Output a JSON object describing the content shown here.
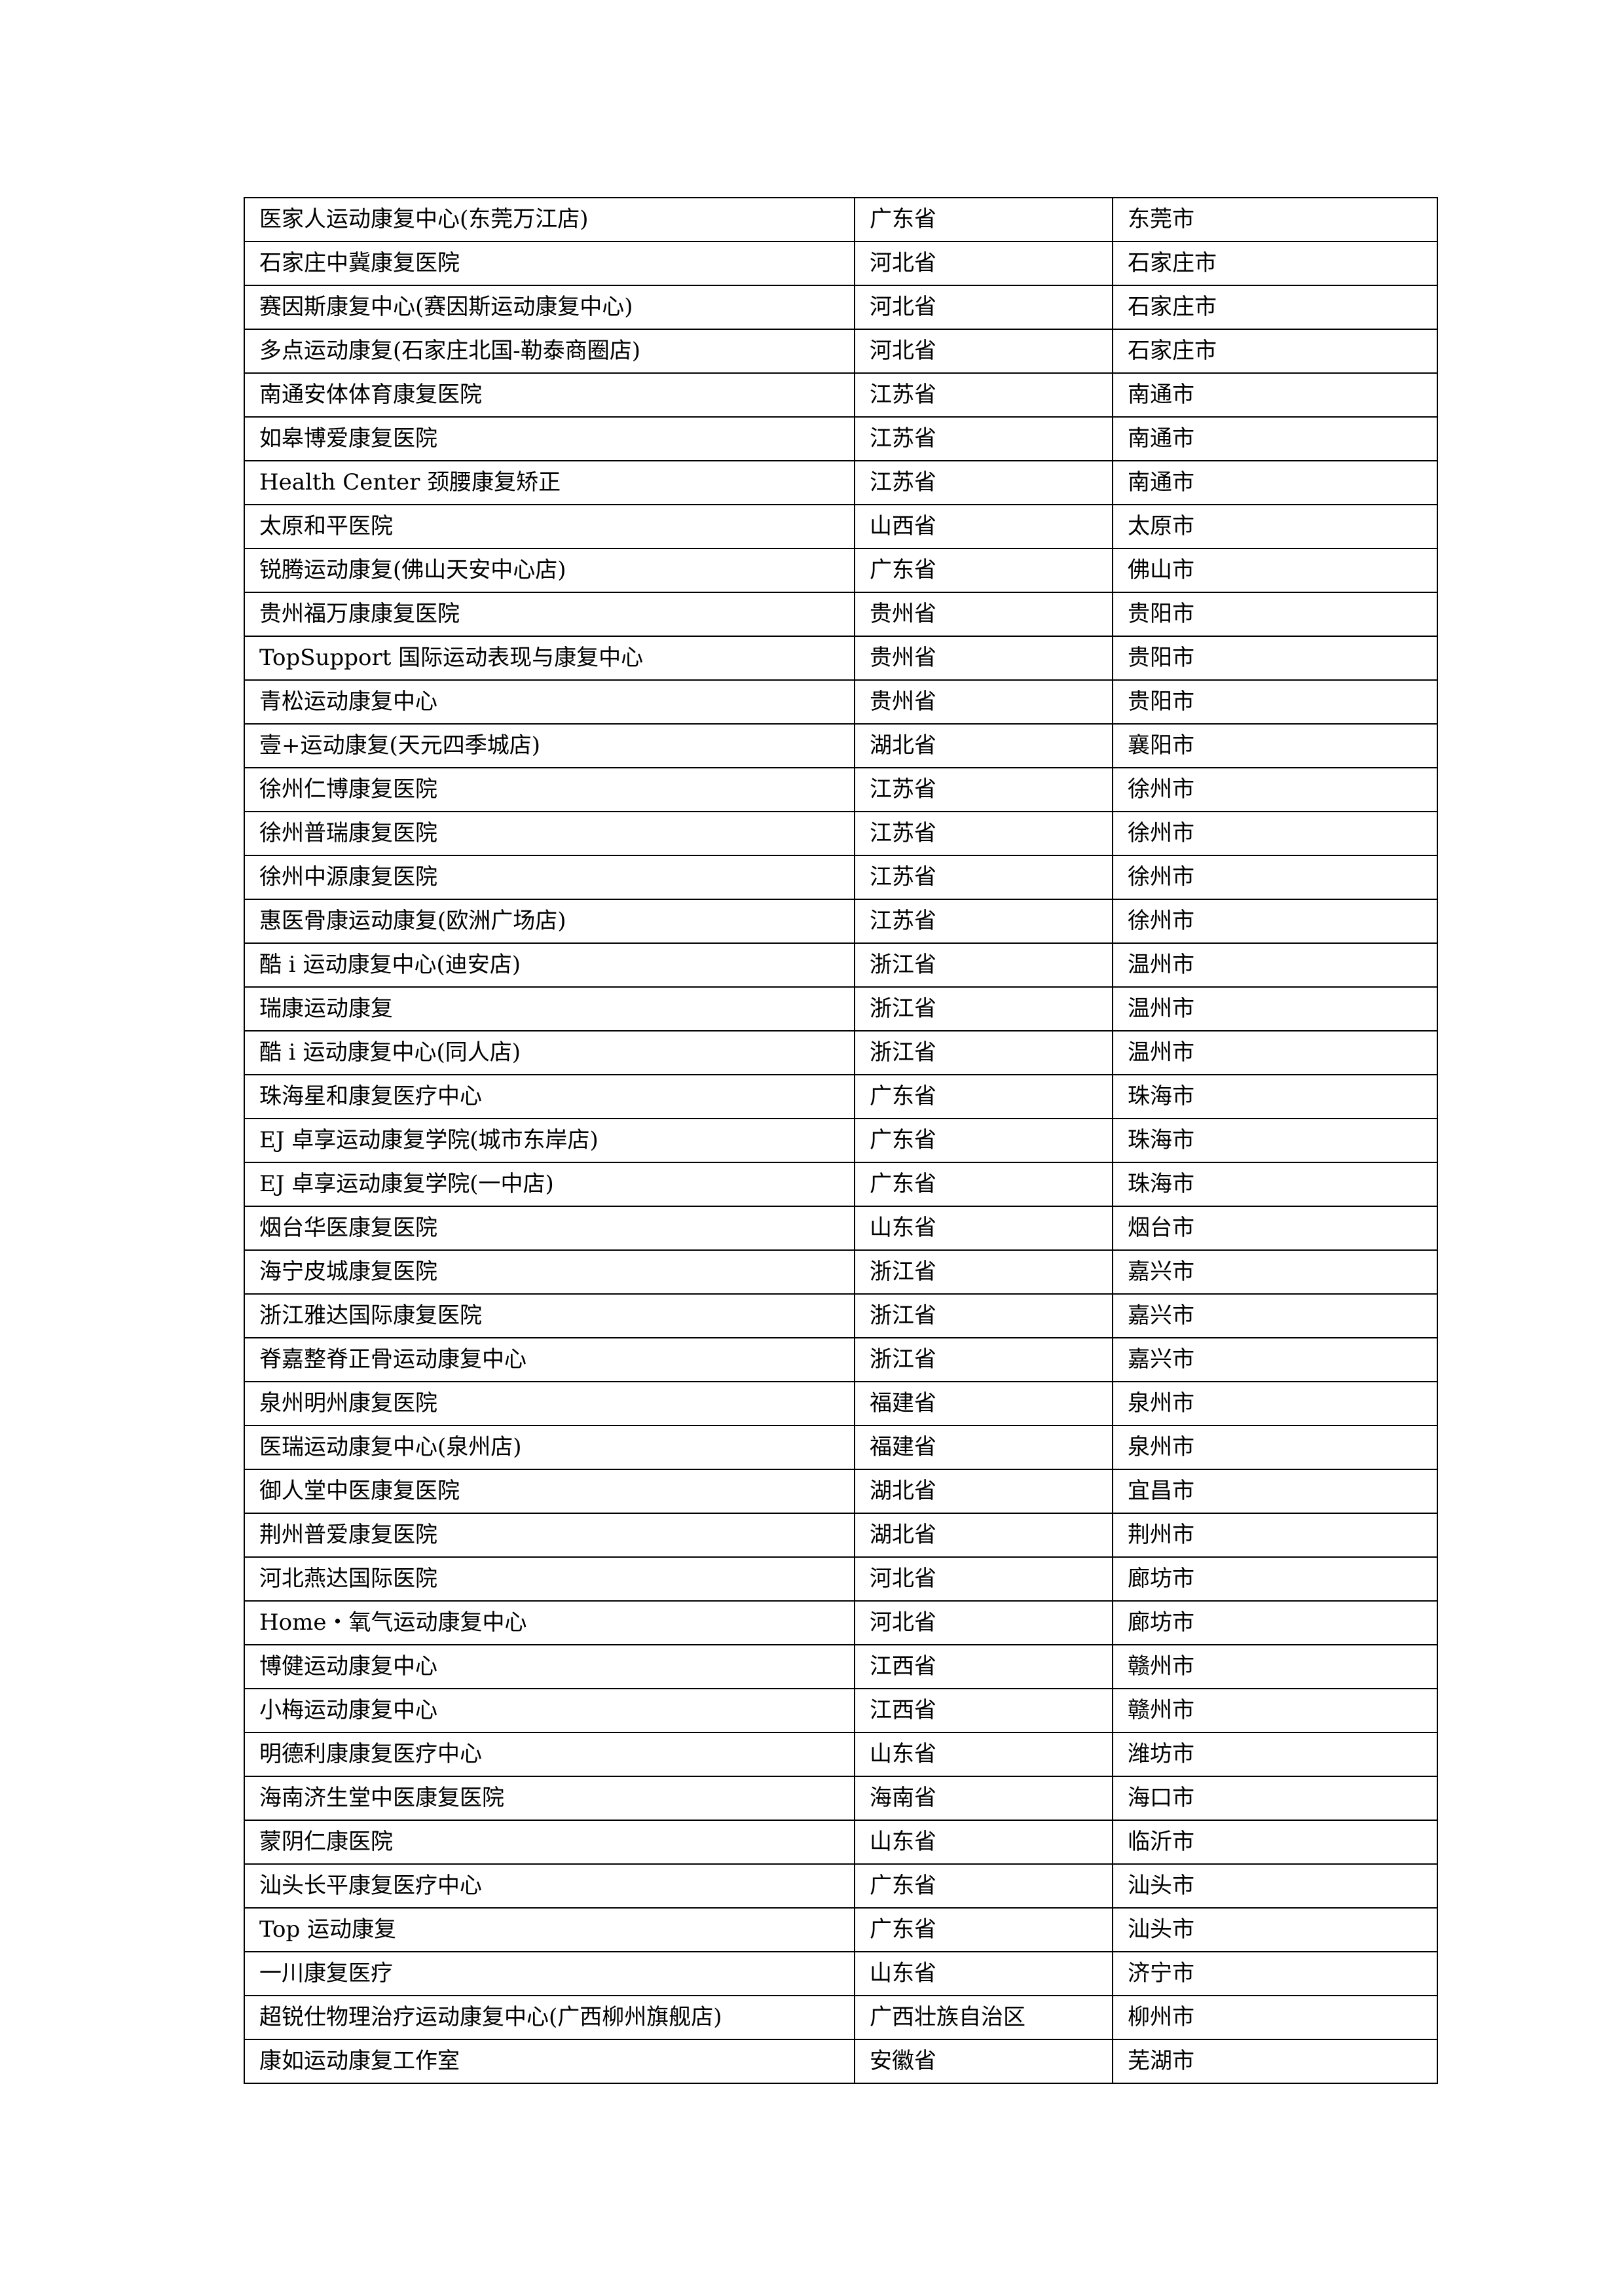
{
  "rows": [
    [
      "医家人运动康复中心(东莞万江店)",
      "广东省",
      "东莞市"
    ],
    [
      "石家庄中冀康复医院",
      "河北省",
      "石家庄市"
    ],
    [
      "赛因斯康复中心(赛因斯运动康复中心)",
      "河北省",
      "石家庄市"
    ],
    [
      "多点运动康复(石家庄北国-勒泰商圈店)",
      "河北省",
      "石家庄市"
    ],
    [
      "南通安体体育康复医院",
      "江苏省",
      "南通市"
    ],
    [
      "如皋博爱康复医院",
      "江苏省",
      "南通市"
    ],
    [
      "Health Center 颈腰康复矫正",
      "江苏省",
      "南通市"
    ],
    [
      "太原和平医院",
      "山西省",
      "太原市"
    ],
    [
      "锐腾运动康复(佛山天安中心店)",
      "广东省",
      "佛山市"
    ],
    [
      "贵州福万康康复医院",
      "贵州省",
      "贵阳市"
    ],
    [
      "TopSupport 国际运动表现与康复中心",
      "贵州省",
      "贵阳市"
    ],
    [
      "青松运动康复中心",
      "贵州省",
      "贵阳市"
    ],
    [
      "壹+运动康复(天元四季城店)",
      "湖北省",
      "襄阳市"
    ],
    [
      "徐州仁博康复医院",
      "江苏省",
      "徐州市"
    ],
    [
      "徐州普瑞康复医院",
      "江苏省",
      "徐州市"
    ],
    [
      "徐州中源康复医院",
      "江苏省",
      "徐州市"
    ],
    [
      "惠医骨康运动康复(欧洲广场店)",
      "江苏省",
      "徐州市"
    ],
    [
      "酷 i 运动康复中心(迪安店)",
      "浙江省",
      "温州市"
    ],
    [
      "瑞康运动康复",
      "浙江省",
      "温州市"
    ],
    [
      "酷 i 运动康复中心(同人店)",
      "浙江省",
      "温州市"
    ],
    [
      "珠海星和康复医疗中心",
      "广东省",
      "珠海市"
    ],
    [
      "EJ 卓享运动康复学院(城市东岸店)",
      "广东省",
      "珠海市"
    ],
    [
      "EJ 卓享运动康复学院(一中店)",
      "广东省",
      "珠海市"
    ],
    [
      "烟台华医康复医院",
      "山东省",
      "烟台市"
    ],
    [
      "海宁皮城康复医院",
      "浙江省",
      "嘉兴市"
    ],
    [
      "浙江雅达国际康复医院",
      "浙江省",
      "嘉兴市"
    ],
    [
      "脊嘉整脊正骨运动康复中心",
      "浙江省",
      "嘉兴市"
    ],
    [
      "泉州明州康复医院",
      "福建省",
      "泉州市"
    ],
    [
      "医瑞运动康复中心(泉州店)",
      "福建省",
      "泉州市"
    ],
    [
      "御人堂中医康复医院",
      "湖北省",
      "宜昌市"
    ],
    [
      "荆州普爱康复医院",
      "湖北省",
      "荆州市"
    ],
    [
      "河北燕达国际医院",
      "河北省",
      "廊坊市"
    ],
    [
      "Home・氧气运动康复中心",
      "河北省",
      "廊坊市"
    ],
    [
      "博健运动康复中心",
      "江西省",
      "赣州市"
    ],
    [
      "小梅运动康复中心",
      "江西省",
      "赣州市"
    ],
    [
      "明德利康康复医疗中心",
      "山东省",
      "潍坊市"
    ],
    [
      "海南济生堂中医康复医院",
      "海南省",
      "海口市"
    ],
    [
      "蒙阴仁康医院",
      "山东省",
      "临沂市"
    ],
    [
      "汕头长平康复医疗中心",
      "广东省",
      "汕头市"
    ],
    [
      "Top 运动康复",
      "广东省",
      "汕头市"
    ],
    [
      "一川康复医疗",
      "山东省",
      "济宁市"
    ],
    [
      "超锐仕物理治疗运动康复中心(广西柳州旗舰店)",
      "广西壮族自治区",
      "柳州市"
    ],
    [
      "康如运动康复工作室",
      "安徽省",
      "芜湖市"
    ]
  ]
}
